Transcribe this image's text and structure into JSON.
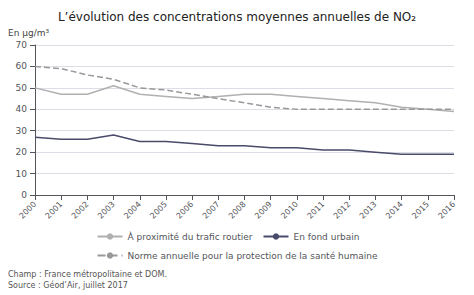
{
  "chart_data": {
    "type": "line",
    "title": "L’évolution des concentrations moyennes annuelles de NO₂",
    "ylabel": "En µg/m³",
    "annotations": [
      "Champ : France métropolitaine et DOM.",
      "Source : Géod’Air, juillet 2017"
    ],
    "x": [
      2000,
      2001,
      2002,
      2003,
      2004,
      2005,
      2006,
      2007,
      2008,
      2009,
      2010,
      2011,
      2012,
      2013,
      2014,
      2015,
      2016
    ],
    "xlim": [
      2000,
      2016
    ],
    "xticks": [
      2000,
      2001,
      2002,
      2003,
      2004,
      2005,
      2006,
      2007,
      2008,
      2009,
      2010,
      2011,
      2012,
      2013,
      2014,
      2015,
      2016
    ],
    "ylim": [
      0,
      70
    ],
    "yticks": [
      0,
      10,
      20,
      30,
      40,
      50,
      60,
      70
    ],
    "grid": true,
    "legend": "bottom",
    "series": [
      {
        "name": "À proximité du trafic routier",
        "color": "#b0b0b0",
        "line_style": "solid",
        "values": [
          50,
          47,
          47,
          51,
          47,
          46,
          45,
          46,
          47,
          47,
          46,
          45,
          44,
          43,
          41,
          40,
          39
        ]
      },
      {
        "name": "En fond urbain",
        "color": "#4a4a6a",
        "line_style": "solid",
        "values": [
          27,
          26,
          26,
          28,
          25,
          25,
          24,
          23,
          23,
          22,
          22,
          21,
          21,
          20,
          19,
          19,
          19
        ]
      },
      {
        "name": "Norme annuelle pour la protection de la santé humaine",
        "color": "#999999",
        "line_style": "dashed",
        "values": [
          60,
          59,
          56,
          54,
          50,
          49,
          47,
          45,
          43,
          41,
          40,
          40,
          40,
          40,
          40,
          40,
          40
        ]
      }
    ]
  }
}
